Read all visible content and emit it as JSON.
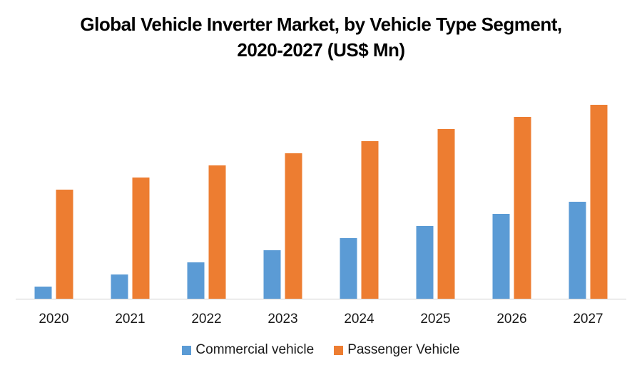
{
  "chart_data": {
    "type": "bar",
    "title_line1": "Global Vehicle Inverter Market, by Vehicle Type Segment,",
    "title_line2": "2020-2027 (US$ Mn)",
    "xlabel": "",
    "ylabel": "",
    "categories": [
      "2020",
      "2021",
      "2022",
      "2023",
      "2024",
      "2025",
      "2026",
      "2027"
    ],
    "series": [
      {
        "name": "Commercial vehicle",
        "color": "#5B9BD5",
        "values": [
          1,
          2,
          3,
          4,
          5,
          6,
          7,
          8
        ]
      },
      {
        "name": "Passenger Vehicle",
        "color": "#ED7D31",
        "values": [
          9,
          10,
          11,
          12,
          13,
          14,
          15,
          16
        ]
      }
    ],
    "ylim": [
      0,
      16
    ],
    "y_axis_visible": false,
    "grid": false,
    "legend_position": "bottom"
  }
}
